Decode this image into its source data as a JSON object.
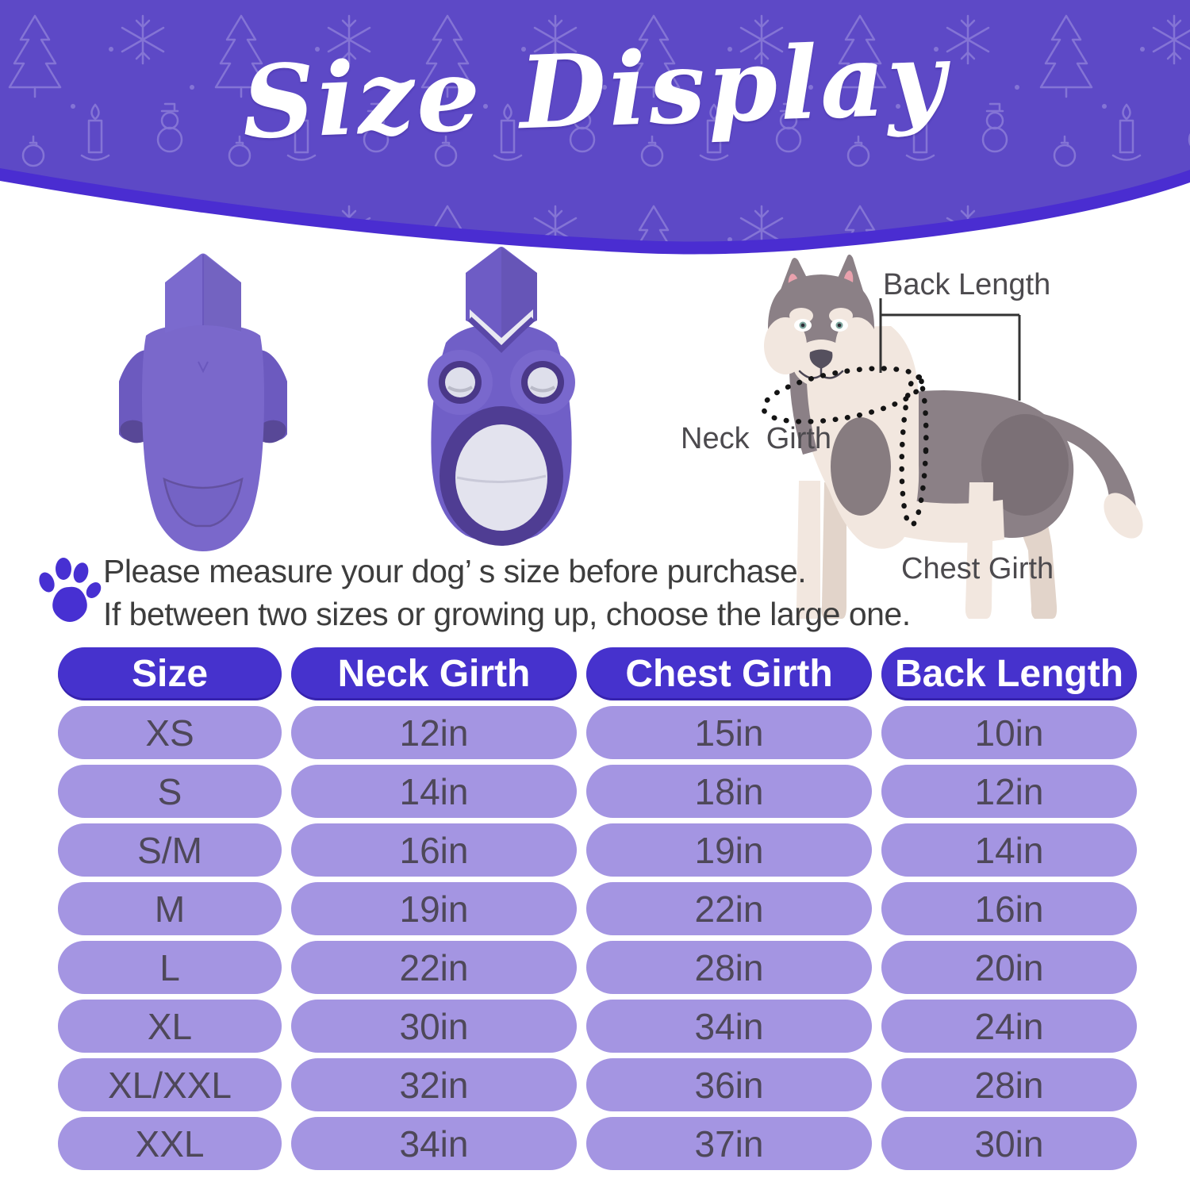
{
  "banner": {
    "title": "Size Display"
  },
  "diagram": {
    "back_length_label": "Back Length",
    "neck_girth_label": "Neck  Girth",
    "chest_girth_label": "Chest Girth"
  },
  "note": {
    "line1": "Please measure your dog’ s size before purchase.",
    "line2": "If between two sizes or growing up, choose the large one."
  },
  "size_table": {
    "columns": [
      "Size",
      "Neck Girth",
      "Chest Girth",
      "Back Length"
    ],
    "rows": [
      [
        "XS",
        "12in",
        "15in",
        "10in"
      ],
      [
        "S",
        "14in",
        "18in",
        "12in"
      ],
      [
        "S/M",
        "16in",
        "19in",
        "14in"
      ],
      [
        "M",
        "19in",
        "22in",
        "16in"
      ],
      [
        "L",
        "22in",
        "28in",
        "20in"
      ],
      [
        "XL",
        "30in",
        "34in",
        "24in"
      ],
      [
        "XL/XXL",
        "32in",
        "36in",
        "28in"
      ],
      [
        "XXL",
        "34in",
        "37in",
        "30in"
      ]
    ]
  },
  "colors": {
    "banner_purple": "#5d49c6",
    "banner_edge": "#4a2dd1",
    "banner_doodle": "#8d7ed9",
    "header_pill": "#4632cd",
    "data_pill": "#a495e2",
    "data_text": "#4e4859",
    "paw": "#4730d2"
  }
}
